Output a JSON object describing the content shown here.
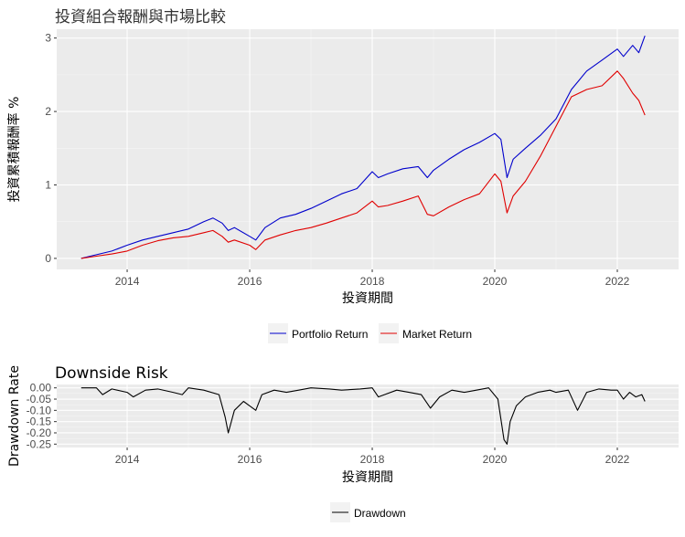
{
  "chart_data": [
    {
      "type": "line",
      "title": "投資組合報酬與市場比較",
      "xlabel": "投資期間",
      "ylabel": "投資累積報酬率 %",
      "xlim": [
        2012.85,
        2023.0
      ],
      "ylim": [
        -0.15,
        3.12
      ],
      "x_ticks": [
        2014,
        2016,
        2018,
        2020,
        2022
      ],
      "x_tick_labels": [
        "2014",
        "2016",
        "2018",
        "2020",
        "2022"
      ],
      "y_ticks": [
        0,
        1,
        2,
        3
      ],
      "y_tick_labels": [
        "0",
        "1",
        "2",
        "3"
      ],
      "grid": true,
      "legend_position": "bottom",
      "series": [
        {
          "name": "Portfolio Return",
          "color": "#0000cc",
          "x": [
            2013.25,
            2013.5,
            2013.75,
            2014.0,
            2014.25,
            2014.5,
            2014.75,
            2015.0,
            2015.25,
            2015.4,
            2015.55,
            2015.65,
            2015.75,
            2016.0,
            2016.1,
            2016.25,
            2016.5,
            2016.75,
            2017.0,
            2017.25,
            2017.5,
            2017.75,
            2018.0,
            2018.1,
            2018.25,
            2018.5,
            2018.75,
            2018.9,
            2019.0,
            2019.25,
            2019.5,
            2019.75,
            2020.0,
            2020.1,
            2020.2,
            2020.3,
            2020.5,
            2020.75,
            2021.0,
            2021.25,
            2021.5,
            2021.75,
            2022.0,
            2022.1,
            2022.25,
            2022.35,
            2022.45
          ],
          "values": [
            0.0,
            0.05,
            0.1,
            0.18,
            0.25,
            0.3,
            0.35,
            0.4,
            0.5,
            0.55,
            0.48,
            0.38,
            0.42,
            0.3,
            0.25,
            0.42,
            0.55,
            0.6,
            0.68,
            0.78,
            0.88,
            0.95,
            1.18,
            1.1,
            1.15,
            1.22,
            1.25,
            1.1,
            1.2,
            1.35,
            1.48,
            1.58,
            1.7,
            1.62,
            1.1,
            1.35,
            1.5,
            1.68,
            1.9,
            2.3,
            2.55,
            2.7,
            2.85,
            2.75,
            2.9,
            2.8,
            3.03
          ]
        },
        {
          "name": "Market Return",
          "color": "#e00000",
          "x": [
            2013.25,
            2013.5,
            2013.75,
            2014.0,
            2014.25,
            2014.5,
            2014.75,
            2015.0,
            2015.25,
            2015.4,
            2015.55,
            2015.65,
            2015.75,
            2016.0,
            2016.1,
            2016.25,
            2016.5,
            2016.75,
            2017.0,
            2017.25,
            2017.5,
            2017.75,
            2018.0,
            2018.1,
            2018.25,
            2018.5,
            2018.75,
            2018.9,
            2019.0,
            2019.25,
            2019.5,
            2019.75,
            2020.0,
            2020.1,
            2020.2,
            2020.3,
            2020.5,
            2020.75,
            2021.0,
            2021.25,
            2021.5,
            2021.75,
            2022.0,
            2022.1,
            2022.25,
            2022.35,
            2022.45
          ],
          "values": [
            0.0,
            0.03,
            0.06,
            0.1,
            0.18,
            0.24,
            0.28,
            0.3,
            0.35,
            0.38,
            0.3,
            0.22,
            0.25,
            0.18,
            0.12,
            0.25,
            0.32,
            0.38,
            0.42,
            0.48,
            0.55,
            0.62,
            0.78,
            0.7,
            0.72,
            0.78,
            0.85,
            0.6,
            0.58,
            0.7,
            0.8,
            0.88,
            1.15,
            1.05,
            0.62,
            0.85,
            1.05,
            1.4,
            1.8,
            2.2,
            2.3,
            2.35,
            2.55,
            2.45,
            2.25,
            2.15,
            1.95
          ]
        }
      ]
    },
    {
      "type": "line",
      "title": "Downside Risk",
      "xlabel": "投資期間",
      "ylabel": "Drawdown Rate",
      "xlim": [
        2012.85,
        2023.0
      ],
      "ylim": [
        -0.265,
        0.015
      ],
      "x_ticks": [
        2014,
        2016,
        2018,
        2020,
        2022
      ],
      "x_tick_labels": [
        "2014",
        "2016",
        "2018",
        "2020",
        "2022"
      ],
      "y_ticks": [
        0.0,
        -0.05,
        -0.1,
        -0.15,
        -0.2,
        -0.25
      ],
      "y_tick_labels": [
        "0.00",
        "-0.05",
        "-0.10",
        "-0.15",
        "-0.20",
        "-0.25"
      ],
      "grid": true,
      "legend_position": "bottom",
      "series": [
        {
          "name": "Drawdown",
          "color": "#000000",
          "x": [
            2013.25,
            2013.5,
            2013.6,
            2013.75,
            2014.0,
            2014.1,
            2014.3,
            2014.5,
            2014.75,
            2014.9,
            2015.0,
            2015.25,
            2015.5,
            2015.6,
            2015.65,
            2015.75,
            2015.9,
            2016.0,
            2016.1,
            2016.2,
            2016.4,
            2016.6,
            2016.8,
            2017.0,
            2017.3,
            2017.5,
            2017.8,
            2018.0,
            2018.1,
            2018.2,
            2018.4,
            2018.6,
            2018.8,
            2018.95,
            2019.1,
            2019.3,
            2019.5,
            2019.7,
            2019.9,
            2020.05,
            2020.15,
            2020.2,
            2020.25,
            2020.35,
            2020.5,
            2020.7,
            2020.9,
            2021.0,
            2021.2,
            2021.35,
            2021.5,
            2021.7,
            2021.9,
            2022.0,
            2022.1,
            2022.2,
            2022.3,
            2022.4,
            2022.45
          ],
          "values": [
            0.0,
            0.0,
            -0.03,
            -0.005,
            -0.02,
            -0.04,
            -0.01,
            -0.005,
            -0.02,
            -0.03,
            0.0,
            -0.01,
            -0.03,
            -0.13,
            -0.2,
            -0.1,
            -0.06,
            -0.08,
            -0.1,
            -0.03,
            -0.01,
            -0.02,
            -0.01,
            0.0,
            -0.005,
            -0.01,
            -0.005,
            0.0,
            -0.04,
            -0.03,
            -0.01,
            -0.02,
            -0.03,
            -0.09,
            -0.04,
            -0.01,
            -0.02,
            -0.01,
            0.0,
            -0.05,
            -0.23,
            -0.25,
            -0.15,
            -0.08,
            -0.04,
            -0.02,
            -0.01,
            -0.02,
            -0.01,
            -0.1,
            -0.02,
            -0.005,
            -0.01,
            -0.01,
            -0.05,
            -0.02,
            -0.04,
            -0.03,
            -0.06
          ]
        }
      ]
    }
  ]
}
